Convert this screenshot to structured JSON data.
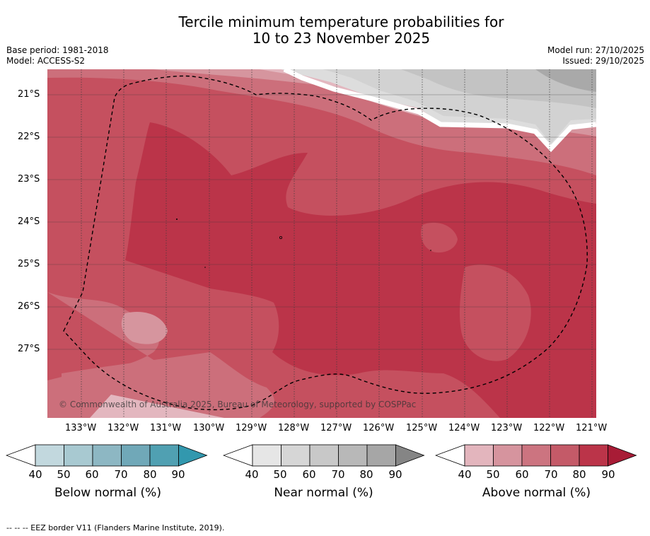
{
  "title": {
    "line1": "Tercile minimum temperature probabilities for",
    "line2": "10 to 23 November 2025"
  },
  "info_left": {
    "base_period": "Base period: 1981-2018",
    "model": "Model: ACCESS-S2"
  },
  "info_right": {
    "model_run": "Model run: 27/10/2025",
    "issued": "Issued: 29/10/2025"
  },
  "map": {
    "lat_labels": [
      "21°S",
      "22°S",
      "23°S",
      "24°S",
      "25°S",
      "26°S",
      "27°S"
    ],
    "lon_labels": [
      "133°W",
      "132°W",
      "131°W",
      "130°W",
      "129°W",
      "128°W",
      "127°W",
      "126°W",
      "125°W",
      "124°W",
      "123°W",
      "122°W",
      "121°W"
    ],
    "copyright": "© Commonwealth of Australia 2025, Bureau of Meteorology, supported by COSPPac"
  },
  "colorbars": [
    {
      "title": "Below normal (%)",
      "ticks": [
        "40",
        "50",
        "60",
        "70",
        "80",
        "90"
      ],
      "colors": [
        "#c2d8de",
        "#a8c9d1",
        "#8db7c3",
        "#70a8b8",
        "#50a0b2",
        "#3298ae"
      ]
    },
    {
      "title": "Near normal (%)",
      "ticks": [
        "40",
        "50",
        "60",
        "70",
        "80",
        "90"
      ],
      "colors": [
        "#e6e6e6",
        "#d6d6d6",
        "#c8c8c8",
        "#b8b8b8",
        "#a6a6a6",
        "#858585"
      ]
    },
    {
      "title": "Above normal (%)",
      "ticks": [
        "40",
        "50",
        "60",
        "70",
        "80",
        "90"
      ],
      "colors": [
        "#e3b5bd",
        "#d6949e",
        "#cc7480",
        "#c45a68",
        "#bb3449",
        "#a81c36"
      ]
    }
  ],
  "footer": "--  --  -- EEZ border V11 (Flanders Marine Institute, 2019)."
}
